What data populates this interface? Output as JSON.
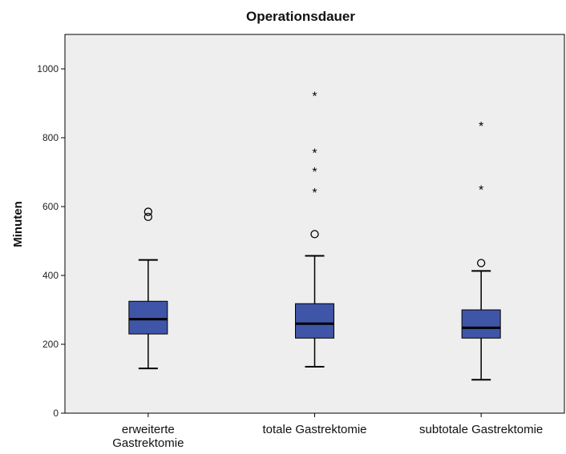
{
  "chart_data": {
    "type": "boxplot",
    "title": "Operationsdauer",
    "ylabel": "Minuten",
    "xlabel": "",
    "ylim": [
      0,
      1100
    ],
    "yticks": [
      0,
      200,
      400,
      600,
      800,
      1000
    ],
    "categories": [
      [
        "erweiterte",
        "Gastrektomie"
      ],
      [
        "totale Gastrektomie"
      ],
      [
        "subtotale Gastrektomie"
      ]
    ],
    "boxes": [
      {
        "whisker_low": 130,
        "q1": 230,
        "median": 273,
        "q3": 325,
        "whisker_high": 445,
        "outliers": [
          570,
          585
        ],
        "extremes": []
      },
      {
        "whisker_low": 135,
        "q1": 218,
        "median": 260,
        "q3": 318,
        "whisker_high": 457,
        "outliers": [
          520
        ],
        "extremes": [
          642,
          702,
          757,
          922
        ]
      },
      {
        "whisker_low": 97,
        "q1": 218,
        "median": 248,
        "q3": 300,
        "whisker_high": 413,
        "outliers": [
          436
        ],
        "extremes": [
          650,
          835
        ]
      }
    ],
    "colors": {
      "box_fill": "#3F55A8",
      "plot_bg": "#EEEEEE",
      "line": "#000000"
    },
    "grid": false
  }
}
